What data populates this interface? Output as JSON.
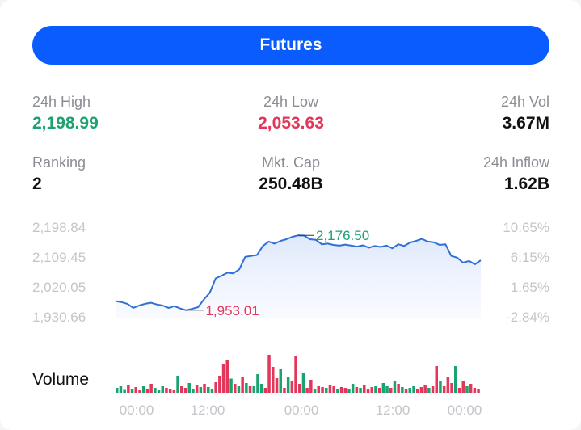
{
  "header": {
    "futures_label": "Futures"
  },
  "stats": {
    "high": {
      "label": "24h High",
      "value": "2,198.99"
    },
    "low": {
      "label": "24h Low",
      "value": "2,053.63"
    },
    "vol": {
      "label": "24h Vol",
      "value": "3.67M"
    },
    "ranking": {
      "label": "Ranking",
      "value": "2"
    },
    "mktcap": {
      "label": "Mkt. Cap",
      "value": "250.48B"
    },
    "inflow": {
      "label": "24h Inflow",
      "value": "1.62B"
    }
  },
  "colors": {
    "accent": "#0a5cff",
    "up": "#1aa36f",
    "down": "#e2365a",
    "line": "#2f6fd6"
  },
  "chart_data": {
    "type": "line",
    "y_left_ticks": [
      "2,198.84",
      "2,109.45",
      "2,020.05",
      "1,930.66"
    ],
    "y_right_ticks": [
      "10.65%",
      "6.15%",
      "1.65%",
      "-2.84%"
    ],
    "ylim": [
      1930.66,
      2198.84
    ],
    "x_ticks": [
      "00:00",
      "12:00",
      "00:00",
      "12:00",
      "00:00"
    ],
    "high_label": "2,176.50",
    "low_label": "1,953.01",
    "high_index": 31,
    "low_index": 12,
    "values": [
      1980,
      1977,
      1972,
      1960,
      1967,
      1972,
      1975,
      1970,
      1967,
      1960,
      1965,
      1958,
      1953,
      1957,
      1962,
      1985,
      2005,
      2048,
      2056,
      2065,
      2063,
      2075,
      2112,
      2115,
      2118,
      2145,
      2158,
      2152,
      2160,
      2165,
      2172,
      2176.5,
      2176,
      2165,
      2163,
      2150,
      2152,
      2148,
      2146,
      2149,
      2146,
      2143,
      2147,
      2140,
      2145,
      2142,
      2146,
      2138,
      2150,
      2145,
      2155,
      2160,
      2166,
      2158,
      2156,
      2148,
      2150,
      2115,
      2110,
      2095,
      2100,
      2090,
      2102
    ],
    "volume_label": "Volume",
    "volume": [
      {
        "v": 0.12,
        "up": true
      },
      {
        "v": 0.16,
        "up": true
      },
      {
        "v": 0.09,
        "up": true
      },
      {
        "v": 0.2,
        "up": false
      },
      {
        "v": 0.1,
        "up": true
      },
      {
        "v": 0.14,
        "up": false
      },
      {
        "v": 0.08,
        "up": false
      },
      {
        "v": 0.18,
        "up": true
      },
      {
        "v": 0.1,
        "up": false
      },
      {
        "v": 0.22,
        "up": false
      },
      {
        "v": 0.12,
        "up": true
      },
      {
        "v": 0.08,
        "up": true
      },
      {
        "v": 0.16,
        "up": true
      },
      {
        "v": 0.12,
        "up": false
      },
      {
        "v": 0.1,
        "up": false
      },
      {
        "v": 0.08,
        "up": false
      },
      {
        "v": 0.42,
        "up": true
      },
      {
        "v": 0.16,
        "up": false
      },
      {
        "v": 0.12,
        "up": false
      },
      {
        "v": 0.24,
        "up": true
      },
      {
        "v": 0.1,
        "up": true
      },
      {
        "v": 0.2,
        "up": false
      },
      {
        "v": 0.14,
        "up": true
      },
      {
        "v": 0.22,
        "up": false
      },
      {
        "v": 0.14,
        "up": true
      },
      {
        "v": 0.1,
        "up": true
      },
      {
        "v": 0.26,
        "up": false
      },
      {
        "v": 0.42,
        "up": false
      },
      {
        "v": 0.72,
        "up": false
      },
      {
        "v": 0.82,
        "up": false
      },
      {
        "v": 0.35,
        "up": true
      },
      {
        "v": 0.22,
        "up": false
      },
      {
        "v": 0.16,
        "up": true
      },
      {
        "v": 0.38,
        "up": false
      },
      {
        "v": 0.24,
        "up": true
      },
      {
        "v": 0.18,
        "up": false
      },
      {
        "v": 0.16,
        "up": true
      },
      {
        "v": 0.46,
        "up": true
      },
      {
        "v": 0.22,
        "up": true
      },
      {
        "v": 0.12,
        "up": false
      },
      {
        "v": 0.94,
        "up": false
      },
      {
        "v": 0.64,
        "up": false
      },
      {
        "v": 0.36,
        "up": false
      },
      {
        "v": 0.6,
        "up": true
      },
      {
        "v": 0.12,
        "up": false
      },
      {
        "v": 0.4,
        "up": true
      },
      {
        "v": 0.3,
        "up": false
      },
      {
        "v": 0.92,
        "up": false
      },
      {
        "v": 0.22,
        "up": false
      },
      {
        "v": 0.48,
        "up": true
      },
      {
        "v": 0.12,
        "up": false
      },
      {
        "v": 0.32,
        "up": false
      },
      {
        "v": 0.1,
        "up": true
      },
      {
        "v": 0.16,
        "up": false
      },
      {
        "v": 0.14,
        "up": false
      },
      {
        "v": 0.12,
        "up": true
      },
      {
        "v": 0.2,
        "up": false
      },
      {
        "v": 0.16,
        "up": false
      },
      {
        "v": 0.1,
        "up": true
      },
      {
        "v": 0.14,
        "up": false
      },
      {
        "v": 0.12,
        "up": false
      },
      {
        "v": 0.1,
        "up": true
      },
      {
        "v": 0.22,
        "up": true
      },
      {
        "v": 0.14,
        "up": false
      },
      {
        "v": 0.12,
        "up": true
      },
      {
        "v": 0.2,
        "up": false
      },
      {
        "v": 0.1,
        "up": false
      },
      {
        "v": 0.14,
        "up": false
      },
      {
        "v": 0.18,
        "up": true
      },
      {
        "v": 0.12,
        "up": false
      },
      {
        "v": 0.24,
        "up": true
      },
      {
        "v": 0.16,
        "up": true
      },
      {
        "v": 0.12,
        "up": false
      },
      {
        "v": 0.3,
        "up": true
      },
      {
        "v": 0.22,
        "up": false
      },
      {
        "v": 0.14,
        "up": true
      },
      {
        "v": 0.1,
        "up": false
      },
      {
        "v": 0.12,
        "up": true
      },
      {
        "v": 0.18,
        "up": true
      },
      {
        "v": 0.1,
        "up": false
      },
      {
        "v": 0.14,
        "up": false
      },
      {
        "v": 0.2,
        "up": false
      },
      {
        "v": 0.12,
        "up": true
      },
      {
        "v": 0.16,
        "up": false
      },
      {
        "v": 0.66,
        "up": false
      },
      {
        "v": 0.3,
        "up": true
      },
      {
        "v": 0.16,
        "up": false
      },
      {
        "v": 0.4,
        "up": false
      },
      {
        "v": 0.24,
        "up": false
      },
      {
        "v": 0.66,
        "up": true
      },
      {
        "v": 0.12,
        "up": false
      },
      {
        "v": 0.3,
        "up": false
      },
      {
        "v": 0.16,
        "up": true
      },
      {
        "v": 0.22,
        "up": false
      },
      {
        "v": 0.12,
        "up": false
      },
      {
        "v": 0.1,
        "up": false
      }
    ]
  }
}
